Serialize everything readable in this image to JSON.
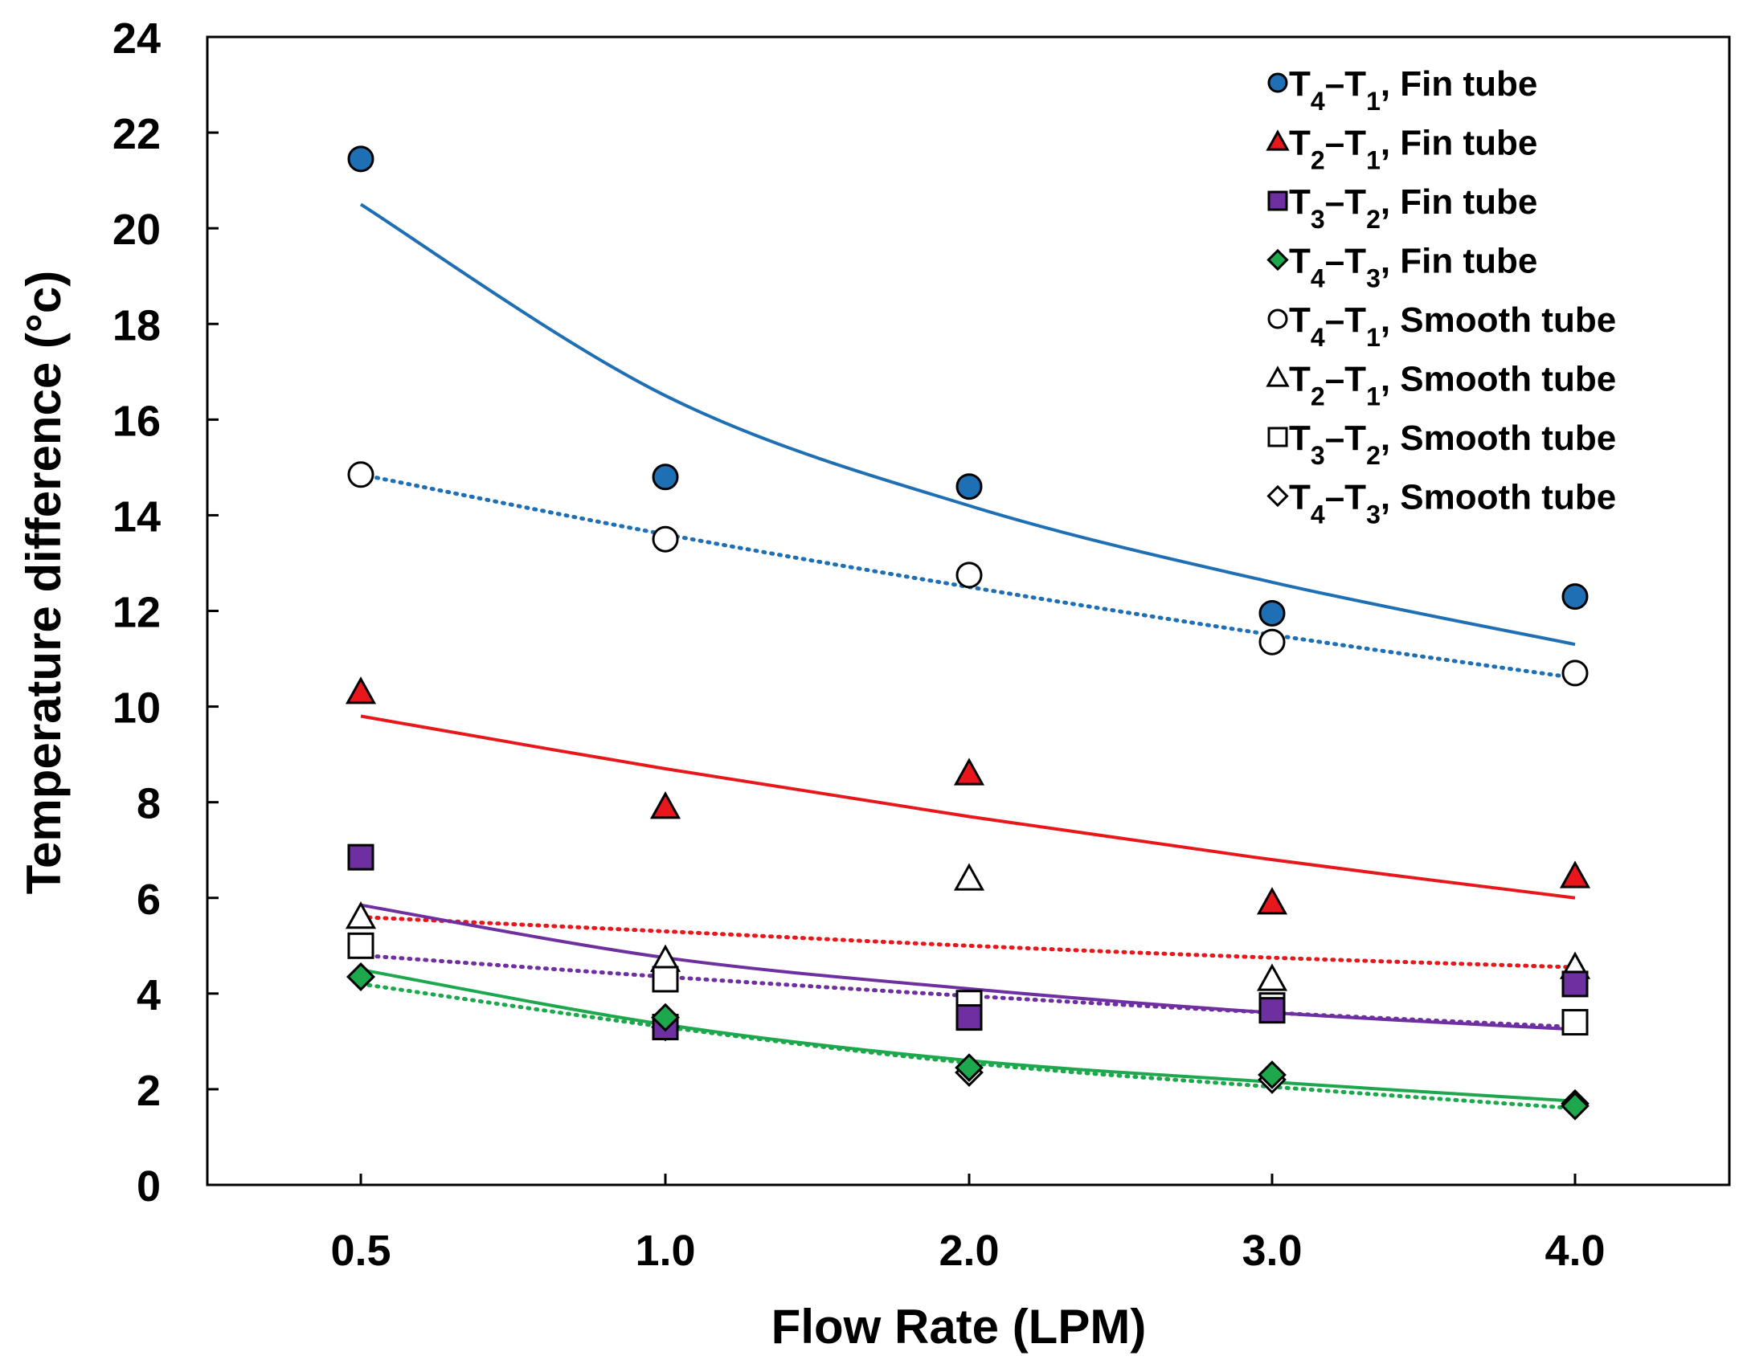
{
  "chart_data": {
    "type": "scatter",
    "title": "",
    "xlabel": "Flow Rate (LPM)",
    "ylabel": "Temperature difference (°c)",
    "categories": [
      "0.5",
      "1.0",
      "2.0",
      "3.0",
      "4.0"
    ],
    "ylim": [
      0,
      24
    ],
    "yticks": [
      "0",
      "2",
      "4",
      "6",
      "8",
      "10",
      "12",
      "14",
      "16",
      "18",
      "20",
      "22",
      "24"
    ],
    "legend_position": "top-right",
    "series": [
      {
        "id": "fin41",
        "legend": {
          "a": "T",
          "s1": "4",
          "dash": "–",
          "b": "T",
          "s2": "1",
          "rest": ", Fin tube"
        },
        "marker": "circle",
        "fill": "#1F6FB5",
        "values": [
          21.45,
          14.8,
          14.6,
          11.95,
          12.3
        ]
      },
      {
        "id": "fin21",
        "legend": {
          "a": "T",
          "s1": "2",
          "dash": "–",
          "b": "T",
          "s2": "1",
          "rest": ", Fin tube"
        },
        "marker": "triangle",
        "fill": "#E8171B",
        "values": [
          10.3,
          7.9,
          8.6,
          5.9,
          6.45
        ]
      },
      {
        "id": "fin32",
        "legend": {
          "a": "T",
          "s1": "3",
          "dash": "–",
          "b": "T",
          "s2": "2",
          "rest": ", Fin tube"
        },
        "marker": "square",
        "fill": "#6E30A0",
        "values": [
          6.85,
          3.3,
          3.5,
          3.65,
          4.2
        ]
      },
      {
        "id": "fin43",
        "legend": {
          "a": "T",
          "s1": "4",
          "dash": "–",
          "b": "T",
          "s2": "3",
          "rest": ", Fin tube"
        },
        "marker": "diamond",
        "fill": "#1EA84E",
        "values": [
          4.35,
          3.5,
          2.45,
          2.3,
          1.65
        ]
      },
      {
        "id": "sm41",
        "legend": {
          "a": "T",
          "s1": "4",
          "dash": "–",
          "b": "T",
          "s2": "1",
          "rest": ", Smooth tube"
        },
        "marker": "circle",
        "fill": "#FFFFFF",
        "values": [
          14.85,
          13.5,
          12.75,
          11.35,
          10.7
        ]
      },
      {
        "id": "sm21",
        "legend": {
          "a": "T",
          "s1": "2",
          "dash": "–",
          "b": "T",
          "s2": "1",
          "rest": ", Smooth tube"
        },
        "marker": "triangle",
        "fill": "#FFFFFF",
        "values": [
          5.6,
          4.7,
          6.4,
          4.3,
          4.55
        ]
      },
      {
        "id": "sm32",
        "legend": {
          "a": "T",
          "s1": "3",
          "dash": "–",
          "b": "T",
          "s2": "2",
          "rest": ", Smooth tube"
        },
        "marker": "square",
        "fill": "#FFFFFF",
        "values": [
          5.0,
          4.3,
          3.8,
          3.75,
          3.4
        ]
      },
      {
        "id": "sm43",
        "legend": {
          "a": "T",
          "s1": "4",
          "dash": "–",
          "b": "T",
          "s2": "3",
          "rest": ", Smooth tube"
        },
        "marker": "diamond",
        "fill": "#FFFFFF",
        "values": [
          4.35,
          3.3,
          2.35,
          2.2,
          1.7
        ]
      }
    ],
    "trendlines": [
      {
        "id": "trend-fin41",
        "color": "#1F6FB5",
        "style": "solid",
        "values": [
          20.5,
          16.5,
          14.2,
          12.6,
          11.3
        ]
      },
      {
        "id": "trend-sm41",
        "color": "#1F6FB5",
        "style": "dotted",
        "values": [
          14.85,
          13.6,
          12.5,
          11.5,
          10.6
        ]
      },
      {
        "id": "trend-fin21",
        "color": "#E8171B",
        "style": "solid",
        "values": [
          9.8,
          8.7,
          7.7,
          6.8,
          6.0
        ]
      },
      {
        "id": "trend-sm21",
        "color": "#E8171B",
        "style": "dotted",
        "values": [
          5.6,
          5.3,
          5.0,
          4.75,
          4.55
        ]
      },
      {
        "id": "trend-fin32",
        "color": "#6E30A0",
        "style": "solid",
        "values": [
          5.85,
          4.75,
          4.1,
          3.6,
          3.25
        ]
      },
      {
        "id": "trend-sm32",
        "color": "#6E30A0",
        "style": "dotted",
        "values": [
          4.8,
          4.35,
          3.95,
          3.6,
          3.3
        ]
      },
      {
        "id": "trend-fin43",
        "color": "#1EA84E",
        "style": "solid",
        "values": [
          4.5,
          3.35,
          2.6,
          2.15,
          1.75
        ]
      },
      {
        "id": "trend-sm43",
        "color": "#1EA84E",
        "style": "dotted",
        "values": [
          4.2,
          3.3,
          2.55,
          2.05,
          1.6
        ]
      }
    ]
  }
}
